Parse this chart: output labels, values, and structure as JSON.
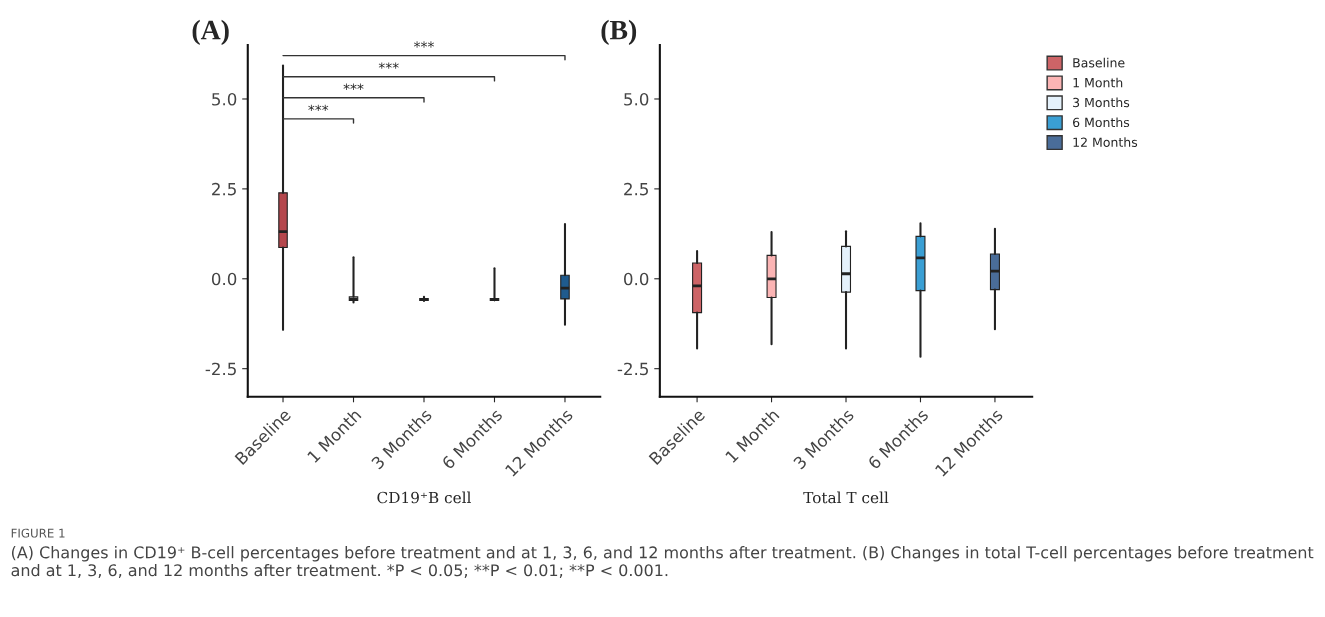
{
  "chart_data": [
    {
      "type": "box",
      "title": "(A)",
      "xlabel": "CD19⁺B cell",
      "categories": [
        "Baseline",
        "1 Month",
        "3 Months",
        "6 Months",
        "12 Months"
      ],
      "boxes": [
        {
          "low": -1.42,
          "q1": 0.87,
          "median": 1.31,
          "q3": 2.39,
          "high": 5.93
        },
        {
          "low": -0.66,
          "q1": -0.6,
          "median": -0.56,
          "q3": -0.5,
          "high": 0.6
        },
        {
          "low": -0.62,
          "q1": -0.6,
          "median": -0.58,
          "q3": -0.55,
          "high": -0.5
        },
        {
          "low": -0.6,
          "q1": -0.6,
          "median": -0.57,
          "q3": -0.55,
          "high": 0.29
        },
        {
          "low": -1.28,
          "q1": -0.56,
          "median": -0.26,
          "q3": 0.1,
          "high": 1.52
        }
      ],
      "colors": [
        "#b5474d",
        "#ffffff",
        "#ffffff",
        "#ffffff",
        "#1f5b8e"
      ],
      "ylim": [
        -3.28,
        6.5
      ],
      "yticks": [
        {
          "value": -2.5,
          "label": "-2.5"
        },
        {
          "value": 0,
          "label": "0.0"
        },
        {
          "value": 2.5,
          "label": "2.5"
        },
        {
          "value": 5,
          "label": "5.0"
        }
      ],
      "annotations": [
        "***",
        "***",
        "***",
        "***",
        "FIGURE 1",
        "(A) Changes in CD19⁺ B-cell percentages before treatment and at 1, 3, 6, and 12 months after treatment. (B) Changes in total T-cell percentages before treatment and at 1, 3, 6, and 12 months after treatment. *P < 0.05; **P < 0.01; **P < 0.001."
      ]
    },
    {
      "type": "box",
      "title": "(B)",
      "xlabel": "Total T cell",
      "categories": [
        "Baseline",
        "1 Month",
        "3 Months",
        "6 Months",
        "12 Months"
      ],
      "series": [
        {
          "name": "Baseline",
          "color": "#cd6467",
          "boxes": [
            {
              "low": -1.94,
              "q1": -0.94,
              "median": -0.2,
              "q3": 0.44,
              "high": 0.77
            },
            null,
            null,
            null,
            null
          ]
        },
        {
          "name": "1 Month",
          "color": "#fbb4b4",
          "boxes": [
            null,
            {
              "low": -1.82,
              "q1": -0.52,
              "median": 0.0,
              "q3": 0.65,
              "high": 1.3
            },
            null,
            null,
            null
          ]
        },
        {
          "name": "3 Months",
          "color": "#e4f1fb",
          "boxes": [
            null,
            null,
            {
              "low": -1.94,
              "q1": -0.37,
              "median": 0.14,
              "q3": 0.9,
              "high": 1.32
            },
            null,
            null
          ]
        },
        {
          "name": "6 Months",
          "color": "#3a9fd4",
          "boxes": [
            null,
            null,
            null,
            {
              "low": -2.17,
              "q1": -0.33,
              "median": 0.58,
              "q3": 1.18,
              "high": 1.54
            },
            null
          ]
        },
        {
          "name": "12 Months",
          "color": "#4a6d99",
          "boxes": [
            null,
            null,
            null,
            null,
            {
              "low": -1.4,
              "q1": -0.3,
              "median": 0.21,
              "q3": 0.69,
              "high": 1.39
            }
          ]
        }
      ],
      "ylim": [
        -3.28,
        6.5
      ],
      "yticks": [
        {
          "value": -2.5,
          "label": "-2.5"
        },
        {
          "value": 0,
          "label": "0.0"
        },
        {
          "value": 2.5,
          "label": "2.5"
        },
        {
          "value": 5,
          "label": "5.0"
        }
      ],
      "legend": "top right"
    }
  ]
}
